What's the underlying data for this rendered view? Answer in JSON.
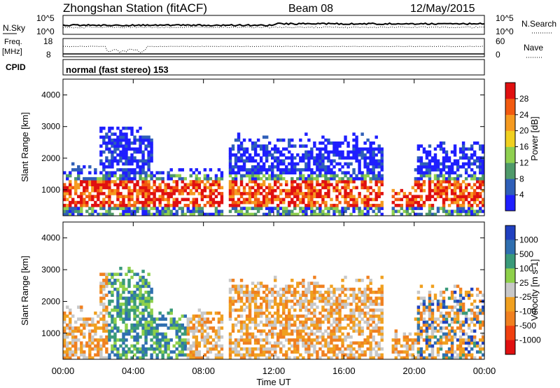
{
  "header": {
    "title": "Zhongshan Station (fitACF)",
    "beam": "Beam 08",
    "date": "12/May/2015"
  },
  "nsky_panel": {
    "left_label": "N.Sky",
    "left_tick_top": "10^5",
    "left_tick_bottom": "10^0",
    "right_label": "N.Search",
    "right_tick_top": "10^5",
    "right_tick_bottom": "10^0"
  },
  "freq_panel": {
    "left_label_1": "Freq.",
    "left_label_2": "[MHz]",
    "left_tick_top": "18",
    "left_tick_bottom": "8",
    "right_label": "Nave",
    "right_tick_top": "60",
    "right_tick_bottom": "0"
  },
  "cpid": {
    "label": "CPID",
    "value": "normal (fast stereo) 153"
  },
  "chart_data": [
    {
      "type": "heatmap",
      "ylabel": "Slant Range [km]",
      "xlabel": "Time UT",
      "x_ticks": [
        "00:00",
        "04:00",
        "08:00",
        "12:00",
        "16:00",
        "20:00",
        "00:00"
      ],
      "y_ticks": [
        "1000",
        "2000",
        "3000",
        "4000"
      ],
      "ylim": [
        180,
        4500
      ],
      "colorbar": {
        "label": "Power [dB]",
        "ticks": [
          "4",
          "8",
          "12",
          "16",
          "20",
          "24",
          "28"
        ],
        "colors": [
          "#1f1fff",
          "#2f5fb8",
          "#4f9a6a",
          "#8fd050",
          "#f0d020",
          "#f59a20",
          "#f25a10",
          "#e01010"
        ]
      }
    },
    {
      "type": "heatmap",
      "ylabel": "Slant Range [km]",
      "xlabel": "Time UT",
      "x_ticks": [
        "00:00",
        "04:00",
        "08:00",
        "12:00",
        "16:00",
        "20:00",
        "00:00"
      ],
      "y_ticks": [
        "1000",
        "2000",
        "3000",
        "4000"
      ],
      "ylim": [
        180,
        4500
      ],
      "colorbar": {
        "label": "Velocity [m s-1]",
        "ticks": [
          "1000",
          "500",
          "100",
          "25",
          "-25",
          "-100",
          "-500",
          "-1000"
        ],
        "colors": [
          "#2040c0",
          "#2f6fb0",
          "#3a9a7a",
          "#8ed04a",
          "#c8c8c8",
          "#f0a020",
          "#f08020",
          "#f04010",
          "#e01010"
        ]
      }
    }
  ]
}
